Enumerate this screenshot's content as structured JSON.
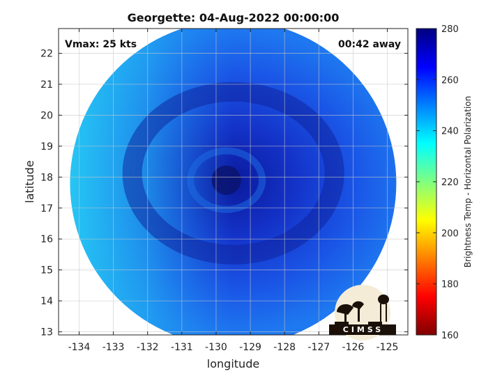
{
  "chart_data": {
    "type": "heatmap",
    "title": "Georgette: 04-Aug-2022 00:00:00",
    "xlabel": "longitude",
    "ylabel": "latitude",
    "xlim": [
      -134.6,
      -124.4
    ],
    "ylim": [
      12.9,
      22.8
    ],
    "xticks": [
      -134,
      -133,
      -132,
      -131,
      -130,
      -129,
      -128,
      -127,
      -126,
      -125
    ],
    "yticks": [
      13,
      14,
      15,
      16,
      17,
      18,
      19,
      20,
      21,
      22
    ],
    "grid": true,
    "storm_center": {
      "lon": -129.7,
      "lat": 17.9
    },
    "swath_center": {
      "lon": -129.5,
      "lat": 17.8
    },
    "swath_radius_deg": 5.0,
    "colorbar": {
      "label": "Brightness Temp - Horizontal Polarization",
      "range": [
        160,
        280
      ],
      "ticks": [
        160,
        180,
        200,
        220,
        240,
        260,
        280
      ],
      "colormap": [
        "#800000",
        "#ff0000",
        "#ff8000",
        "#ffff00",
        "#80ff80",
        "#00ffff",
        "#0080ff",
        "#0000ff",
        "#000080"
      ]
    },
    "annotations": {
      "left": "Vmax: 25 kts",
      "right": "00:42 away"
    },
    "logo_text": "CIMSS"
  }
}
